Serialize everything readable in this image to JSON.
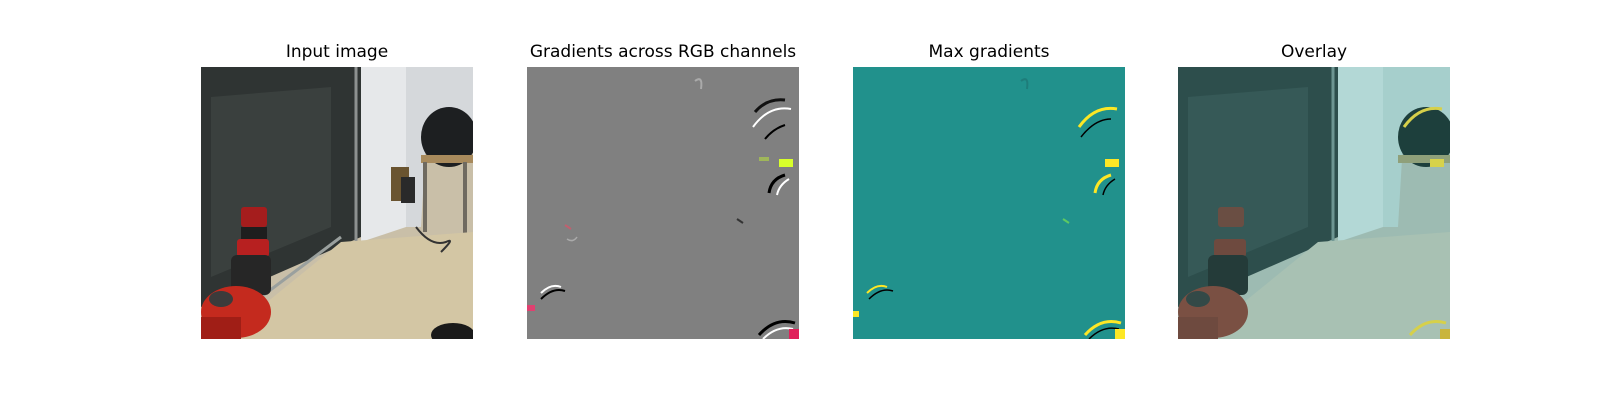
{
  "figure": {
    "panels": [
      {
        "title": "Input image"
      },
      {
        "title": "Gradients across RGB channels"
      },
      {
        "title": "Max gradients"
      },
      {
        "title": "Overlay"
      }
    ]
  },
  "colors": {
    "background": "#ffffff",
    "gradient_gray": "#808080",
    "max_grad_teal": "#21918c",
    "highlight_yellow": "#fde725",
    "overlay_tint": "#2a9a96"
  }
}
